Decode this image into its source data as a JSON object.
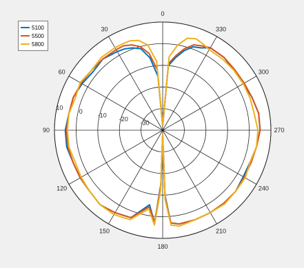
{
  "chart_data": {
    "type": "line",
    "subtype": "polar",
    "title": "",
    "angle_ticks": [
      "0",
      "30",
      "60",
      "90",
      "120",
      "150",
      "180",
      "210",
      "240",
      "270",
      "300",
      "330"
    ],
    "angle_direction": "counterclockwise, 0 at top",
    "radial_ticks": [
      "-30",
      "-20",
      "-10",
      "0",
      "10"
    ],
    "radial_range": [
      -40,
      10
    ],
    "grid": true,
    "legend_position": "top-left",
    "series": [
      {
        "name": "5100",
        "color": "#0072BD",
        "theta_deg": [
          0,
          5,
          10,
          15,
          20,
          25,
          30,
          40,
          50,
          60,
          70,
          80,
          90,
          100,
          110,
          120,
          130,
          140,
          150,
          160,
          170,
          175,
          178,
          180,
          182,
          185,
          190,
          200,
          210,
          220,
          230,
          240,
          250,
          260,
          270,
          280,
          290,
          300,
          310,
          320,
          330,
          335,
          340,
          345,
          350,
          355
        ],
        "r": [
          -38,
          -15,
          -6,
          -1,
          0.5,
          1.5,
          2,
          3,
          2,
          3,
          4,
          4,
          5,
          5,
          4,
          4,
          4,
          5,
          4,
          3,
          -5,
          3,
          -15,
          -38,
          -10,
          3,
          4,
          4,
          4,
          4,
          4,
          3,
          3,
          4,
          5,
          5,
          4,
          3,
          3,
          4,
          4,
          2,
          1,
          -2,
          -6,
          -10
        ]
      },
      {
        "name": "5500",
        "color": "#D95319",
        "theta_deg": [
          0,
          5,
          10,
          15,
          20,
          25,
          30,
          40,
          50,
          60,
          70,
          80,
          90,
          100,
          110,
          120,
          130,
          140,
          150,
          160,
          170,
          175,
          178,
          180,
          182,
          185,
          190,
          200,
          210,
          220,
          230,
          240,
          250,
          260,
          270,
          280,
          290,
          300,
          310,
          320,
          330,
          335,
          340,
          345,
          350,
          355
        ],
        "r": [
          -38,
          -12,
          -4,
          0,
          2,
          3,
          3,
          3,
          3,
          3.5,
          4,
          4,
          4.5,
          4.5,
          4,
          4,
          4,
          5,
          4,
          3,
          -4,
          3,
          -14,
          -38,
          -9,
          3,
          4,
          4,
          4,
          4,
          4,
          3.5,
          3.5,
          4,
          5,
          5,
          4,
          3.5,
          3.5,
          4,
          4,
          3,
          2,
          -1,
          -5,
          -9
        ]
      },
      {
        "name": "5800",
        "color": "#EDB120",
        "theta_deg": [
          0,
          5,
          10,
          15,
          20,
          25,
          30,
          40,
          50,
          60,
          70,
          80,
          90,
          100,
          110,
          120,
          130,
          140,
          150,
          160,
          170,
          175,
          178,
          180,
          182,
          185,
          190,
          200,
          210,
          220,
          230,
          240,
          250,
          260,
          270,
          280,
          290,
          300,
          310,
          320,
          330,
          335,
          340,
          345,
          350,
          355
        ],
        "r": [
          -38,
          -8,
          0,
          3,
          4,
          4,
          4,
          4,
          3,
          4,
          3,
          4,
          4,
          4,
          3,
          3.5,
          4,
          5,
          5,
          4,
          -3,
          4,
          -12,
          -38,
          -8,
          4,
          5,
          4,
          4,
          4.5,
          4,
          4,
          3,
          4,
          4,
          3,
          3,
          3,
          3,
          3,
          3,
          4,
          5,
          4,
          0,
          -6
        ]
      }
    ]
  }
}
